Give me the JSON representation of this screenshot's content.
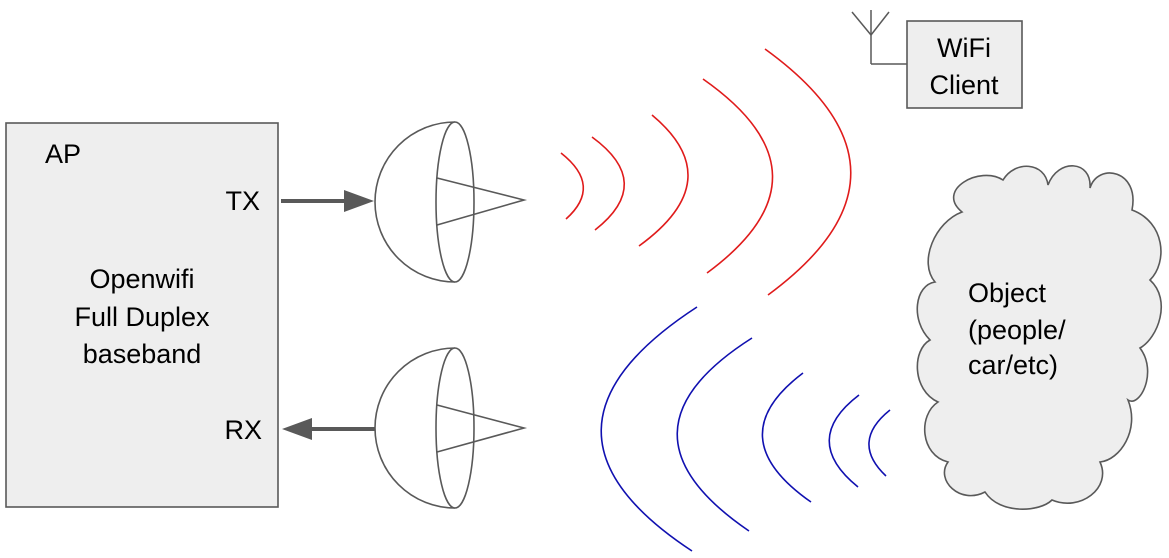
{
  "ap_box": {
    "title": "AP",
    "tx_label": "TX",
    "rx_label": "RX",
    "description_lines": [
      "Openwifi",
      "Full Duplex",
      "baseband"
    ]
  },
  "wifi_client": {
    "label_lines": [
      "WiFi",
      "Client"
    ],
    "icon": "antenna-icon"
  },
  "object_cloud": {
    "label_lines": [
      "Object",
      "(people/",
      "car/etc)"
    ]
  },
  "colors": {
    "box_fill": "#eeeeee",
    "outline": "#595959",
    "tx_waves": "#e01b1b",
    "rx_waves": "#1010b0",
    "arrow": "#595959"
  },
  "icons": {
    "tx_antenna": "dish-antenna-icon",
    "rx_antenna": "dish-antenna-icon",
    "client_antenna": "antenna-icon"
  }
}
